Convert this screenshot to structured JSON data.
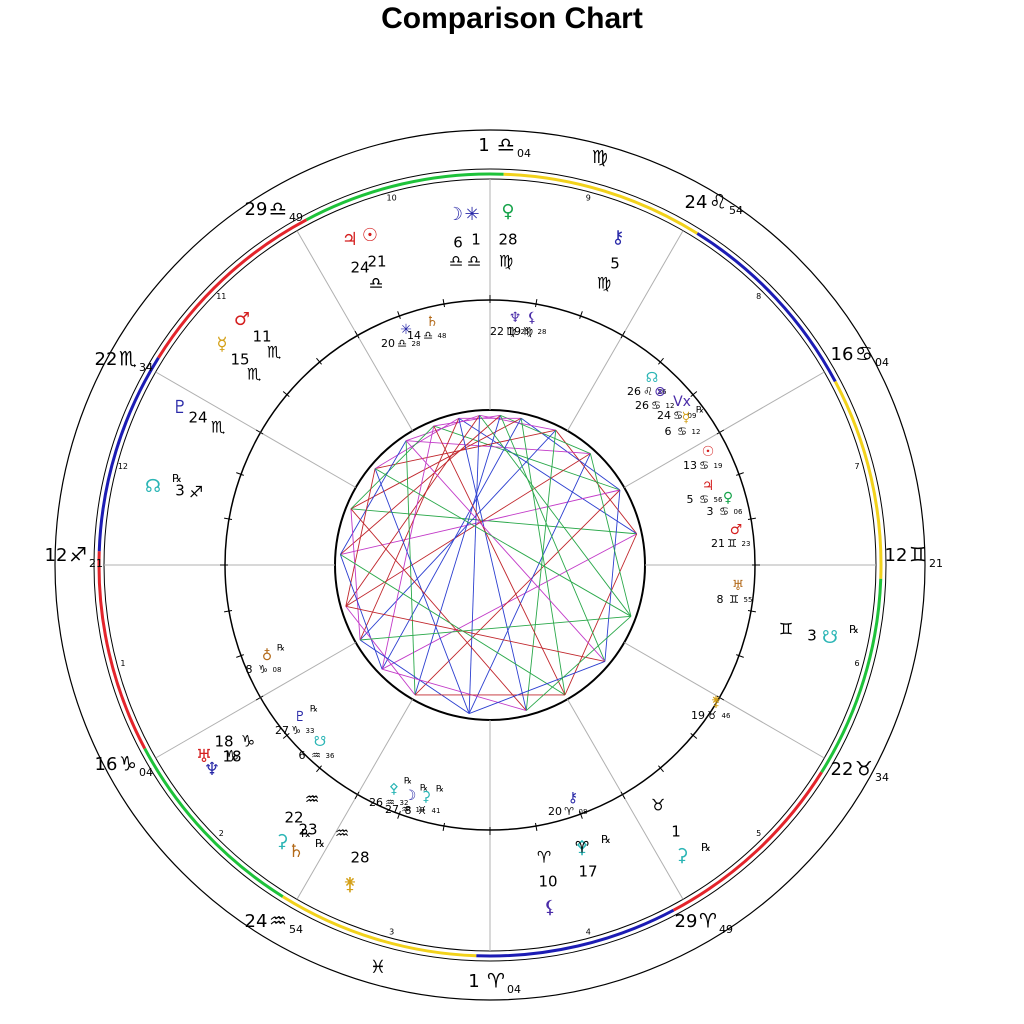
{
  "title": "Comparison Chart",
  "colors": {
    "fire": "#e3242b",
    "earth": "#1ec23a",
    "air": "#f2d21b",
    "water": "#1c1cb4",
    "line_red": "#c0262c",
    "line_blue": "#2c3fd0",
    "line_green": "#2aa84a",
    "line_magenta": "#c23ac8",
    "planet_red": "#d41e1e",
    "planet_blue": "#2929a8",
    "planet_green": "#16a34a",
    "planet_gold": "#d4a017",
    "planet_teal": "#2bb5b5",
    "planet_brown": "#b36a1a",
    "planet_purple": "#4a2ca8"
  },
  "outer_cusps": [
    {
      "id": "c10",
      "deg": "1",
      "sign": "♎",
      "min": "04"
    },
    {
      "id": "c11",
      "deg": "24",
      "sign": "♌",
      "min": "54"
    },
    {
      "id": "c12",
      "deg": "16",
      "sign": "♋",
      "min": "04"
    },
    {
      "id": "c1",
      "deg": "12",
      "sign": "♊",
      "min": "21"
    },
    {
      "id": "c2",
      "deg": "22",
      "sign": "♉",
      "min": "34"
    },
    {
      "id": "c3",
      "deg": "29",
      "sign": "♈",
      "min": "49"
    },
    {
      "id": "c4",
      "deg": "1",
      "sign": "♈",
      "min": "04"
    },
    {
      "id": "c5",
      "deg": "24",
      "sign": "♒",
      "min": "54"
    },
    {
      "id": "c6",
      "deg": "16",
      "sign": "♑",
      "min": "04"
    },
    {
      "id": "c7",
      "deg": "12",
      "sign": "♐",
      "min": "21"
    },
    {
      "id": "c8",
      "deg": "22",
      "sign": "♏",
      "min": "34"
    },
    {
      "id": "c9",
      "deg": "29",
      "sign": "♎",
      "min": "49"
    }
  ],
  "intercepted_signs": [
    {
      "id": "virgo",
      "sign": "♍"
    },
    {
      "id": "pisces",
      "sign": "♓"
    }
  ],
  "house_numbers": [
    "1",
    "2",
    "3",
    "4",
    "5",
    "6",
    "7",
    "8",
    "9",
    "10",
    "11",
    "12"
  ],
  "outer_planets": [
    {
      "id": "o-moon",
      "glyph": "☽",
      "deg": "6",
      "sign": "♎",
      "color": "planet_blue"
    },
    {
      "id": "o-vesta",
      "glyph": "✳",
      "deg": "1",
      "sign": "♎",
      "color": "planet_blue"
    },
    {
      "id": "o-venus",
      "glyph": "♀",
      "deg": "28",
      "sign": "♍",
      "color": "planet_green"
    },
    {
      "id": "o-chiron",
      "glyph": "⚷",
      "deg": "5",
      "sign": "♍",
      "color": "planet_blue"
    },
    {
      "id": "o-jupiter",
      "glyph": "♃",
      "deg": "24",
      "sign": "♎",
      "color": "planet_red"
    },
    {
      "id": "o-sun",
      "glyph": "☉",
      "deg": "21",
      "sign": "♎",
      "color": "planet_red"
    },
    {
      "id": "o-mars",
      "glyph": "♂",
      "deg": "11",
      "sign": "♏",
      "color": "planet_red"
    },
    {
      "id": "o-mercury",
      "glyph": "☿",
      "deg": "15",
      "sign": "♏",
      "color": "planet_gold"
    },
    {
      "id": "o-pluto",
      "glyph": "♇",
      "deg": "24",
      "sign": "♏",
      "color": "planet_blue"
    },
    {
      "id": "o-node",
      "glyph": "☊",
      "deg": "3",
      "sign": "♐",
      "retro": "℞",
      "color": "planet_teal"
    },
    {
      "id": "o-uranus",
      "glyph": "♅",
      "deg": "18",
      "sign": "♑",
      "color": "planet_red"
    },
    {
      "id": "o-neptune",
      "glyph": "♆",
      "deg": "18",
      "sign": "♑",
      "color": "planet_blue"
    },
    {
      "id": "o-ceres",
      "glyph": "⚳",
      "deg": "22",
      "sign": "♒",
      "retro": "℞",
      "color": "planet_teal"
    },
    {
      "id": "o-saturn",
      "glyph": "♄",
      "deg": "23",
      "sign": "♒",
      "retro": "℞",
      "color": "planet_brown"
    },
    {
      "id": "o-juno",
      "glyph": "⚵",
      "deg": "28",
      "sign": "♒",
      "color": "planet_gold"
    },
    {
      "id": "o-pallas",
      "glyph": "⚴",
      "deg": "17",
      "sign": "♈",
      "retro": "℞",
      "color": "planet_teal"
    },
    {
      "id": "o-lilith",
      "glyph": "⚸",
      "deg": "10",
      "sign": "♈",
      "color": "planet_purple"
    },
    {
      "id": "o-earth",
      "glyph": "⚳",
      "deg": "1",
      "sign": "♉",
      "retro": "℞",
      "color": "planet_teal"
    },
    {
      "id": "o-snode",
      "glyph": "☋",
      "deg": "3",
      "sign": "♊",
      "retro": "℞",
      "color": "planet_teal"
    }
  ],
  "inner_planets": [
    {
      "id": "i-vesta",
      "glyph": "✳",
      "deg": "20",
      "min": "28",
      "sign": "♎",
      "color": "planet_blue"
    },
    {
      "id": "i-saturn",
      "glyph": "♄",
      "deg": "14",
      "min": "48",
      "sign": "♎",
      "color": "planet_brown"
    },
    {
      "id": "i-neptune",
      "glyph": "♆",
      "deg": "22",
      "min": "25",
      "sign": "♍",
      "color": "planet_purple"
    },
    {
      "id": "i-lilith",
      "glyph": "⚸",
      "deg": "19",
      "min": "28",
      "sign": "♍",
      "color": "planet_purple"
    },
    {
      "id": "i-node",
      "glyph": "☊",
      "deg": "26",
      "min": "36",
      "sign": "♌",
      "color": "planet_teal"
    },
    {
      "id": "i-pof",
      "glyph": "⊗",
      "deg": "26",
      "min": "12",
      "sign": "♋",
      "color": "planet_purple"
    },
    {
      "id": "i-vertex",
      "glyph": "Vx",
      "deg": "24",
      "min": "09",
      "sign": "♋",
      "color": "planet_purple"
    },
    {
      "id": "i-mercury",
      "glyph": "☿",
      "deg": "6",
      "min": "12",
      "sign": "♋",
      "retro": "℞",
      "color": "planet_gold"
    },
    {
      "id": "i-sun",
      "glyph": "☉",
      "deg": "13",
      "min": "19",
      "sign": "♋",
      "color": "planet_red"
    },
    {
      "id": "i-jupiter",
      "glyph": "♃",
      "deg": "5",
      "min": "56",
      "sign": "♋",
      "color": "planet_red"
    },
    {
      "id": "i-venus",
      "glyph": "♀",
      "deg": "3",
      "min": "06",
      "sign": "♋",
      "color": "planet_green"
    },
    {
      "id": "i-mars",
      "glyph": "♂",
      "deg": "21",
      "min": "23",
      "sign": "♊",
      "color": "planet_red"
    },
    {
      "id": "i-uranus",
      "glyph": "♅",
      "deg": "8",
      "min": "55",
      "sign": "♊",
      "color": "planet_brown"
    },
    {
      "id": "i-juno",
      "glyph": "⚵",
      "deg": "19",
      "min": "46",
      "sign": "♉",
      "color": "planet_gold"
    },
    {
      "id": "i-chiron",
      "glyph": "⚷",
      "deg": "20",
      "min": "08",
      "sign": "♈",
      "color": "planet_blue"
    },
    {
      "id": "i-ceres",
      "glyph": "⚳",
      "deg": "8",
      "min": "41",
      "sign": "♓",
      "retro": "℞",
      "color": "planet_teal"
    },
    {
      "id": "i-moon",
      "glyph": "☽",
      "deg": "27",
      "min": "10",
      "sign": "♒",
      "retro": "℞",
      "color": "planet_blue"
    },
    {
      "id": "i-pallas",
      "glyph": "⚴",
      "deg": "26",
      "min": "32",
      "sign": "♒",
      "retro": "℞",
      "color": "planet_teal"
    },
    {
      "id": "i-pluto",
      "glyph": "♇",
      "deg": "27",
      "min": "33",
      "sign": "♑",
      "retro": "℞",
      "color": "planet_blue"
    },
    {
      "id": "i-snode",
      "glyph": "☋",
      "deg": "6",
      "min": "36",
      "sign": "♒",
      "color": "planet_teal"
    },
    {
      "id": "i-earth",
      "glyph": "♁",
      "deg": "8",
      "min": "08",
      "sign": "♑",
      "retro": "℞",
      "color": "planet_brown"
    }
  ]
}
